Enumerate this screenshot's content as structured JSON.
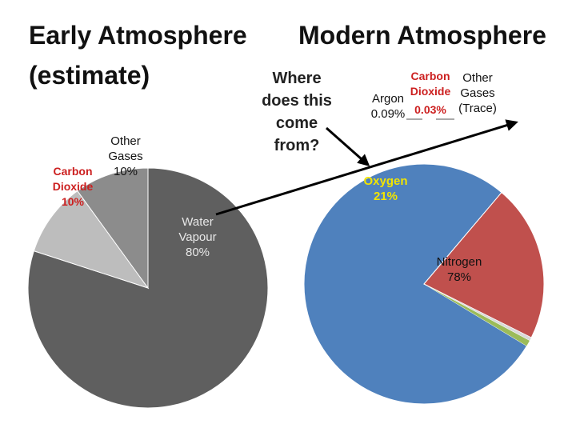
{
  "chart_data": [
    {
      "type": "pie",
      "title": "Early Atmosphere",
      "subtitle": "(estimate)",
      "slices": [
        {
          "label": "Water Vapour",
          "value": 80,
          "value_label": "80%",
          "color": "#5f5f5f",
          "label_color": "#e8e8e8"
        },
        {
          "label": "Carbon Dioxide",
          "value": 10,
          "value_label": "10%",
          "color": "#bdbdbd",
          "label_color": "#cc1f1f"
        },
        {
          "label": "Other Gases",
          "value": 10,
          "value_label": "10%",
          "color": "#8c8c8c",
          "label_color": "#111111"
        }
      ]
    },
    {
      "type": "pie",
      "title": "Modern Atmosphere",
      "slices": [
        {
          "label": "Nitrogen",
          "value": 78,
          "value_label": "78%",
          "color": "#4f81bd",
          "label_color": "#111111"
        },
        {
          "label": "Oxygen",
          "value": 21,
          "value_label": "21%",
          "color": "#c0504d",
          "label_color": "#f2e500"
        },
        {
          "label": "Argon",
          "value": 0.09,
          "value_label": "0.09%",
          "color": "#d9d9d9",
          "label_color": "#111111"
        },
        {
          "label": "Carbon Dioxide",
          "value": 0.03,
          "value_label": "0.03%",
          "color": "#9bbb59",
          "label_color": "#cc1f1f"
        },
        {
          "label": "Other Gases",
          "value_label": "(Trace)",
          "color": "#cccccc",
          "label_color": "#111111"
        }
      ]
    }
  ],
  "annotation": {
    "question": "Where does this come from?"
  },
  "colors": {
    "arrow": "#000000",
    "red_text": "#cc1f1f",
    "yellow_text": "#f2e500"
  }
}
